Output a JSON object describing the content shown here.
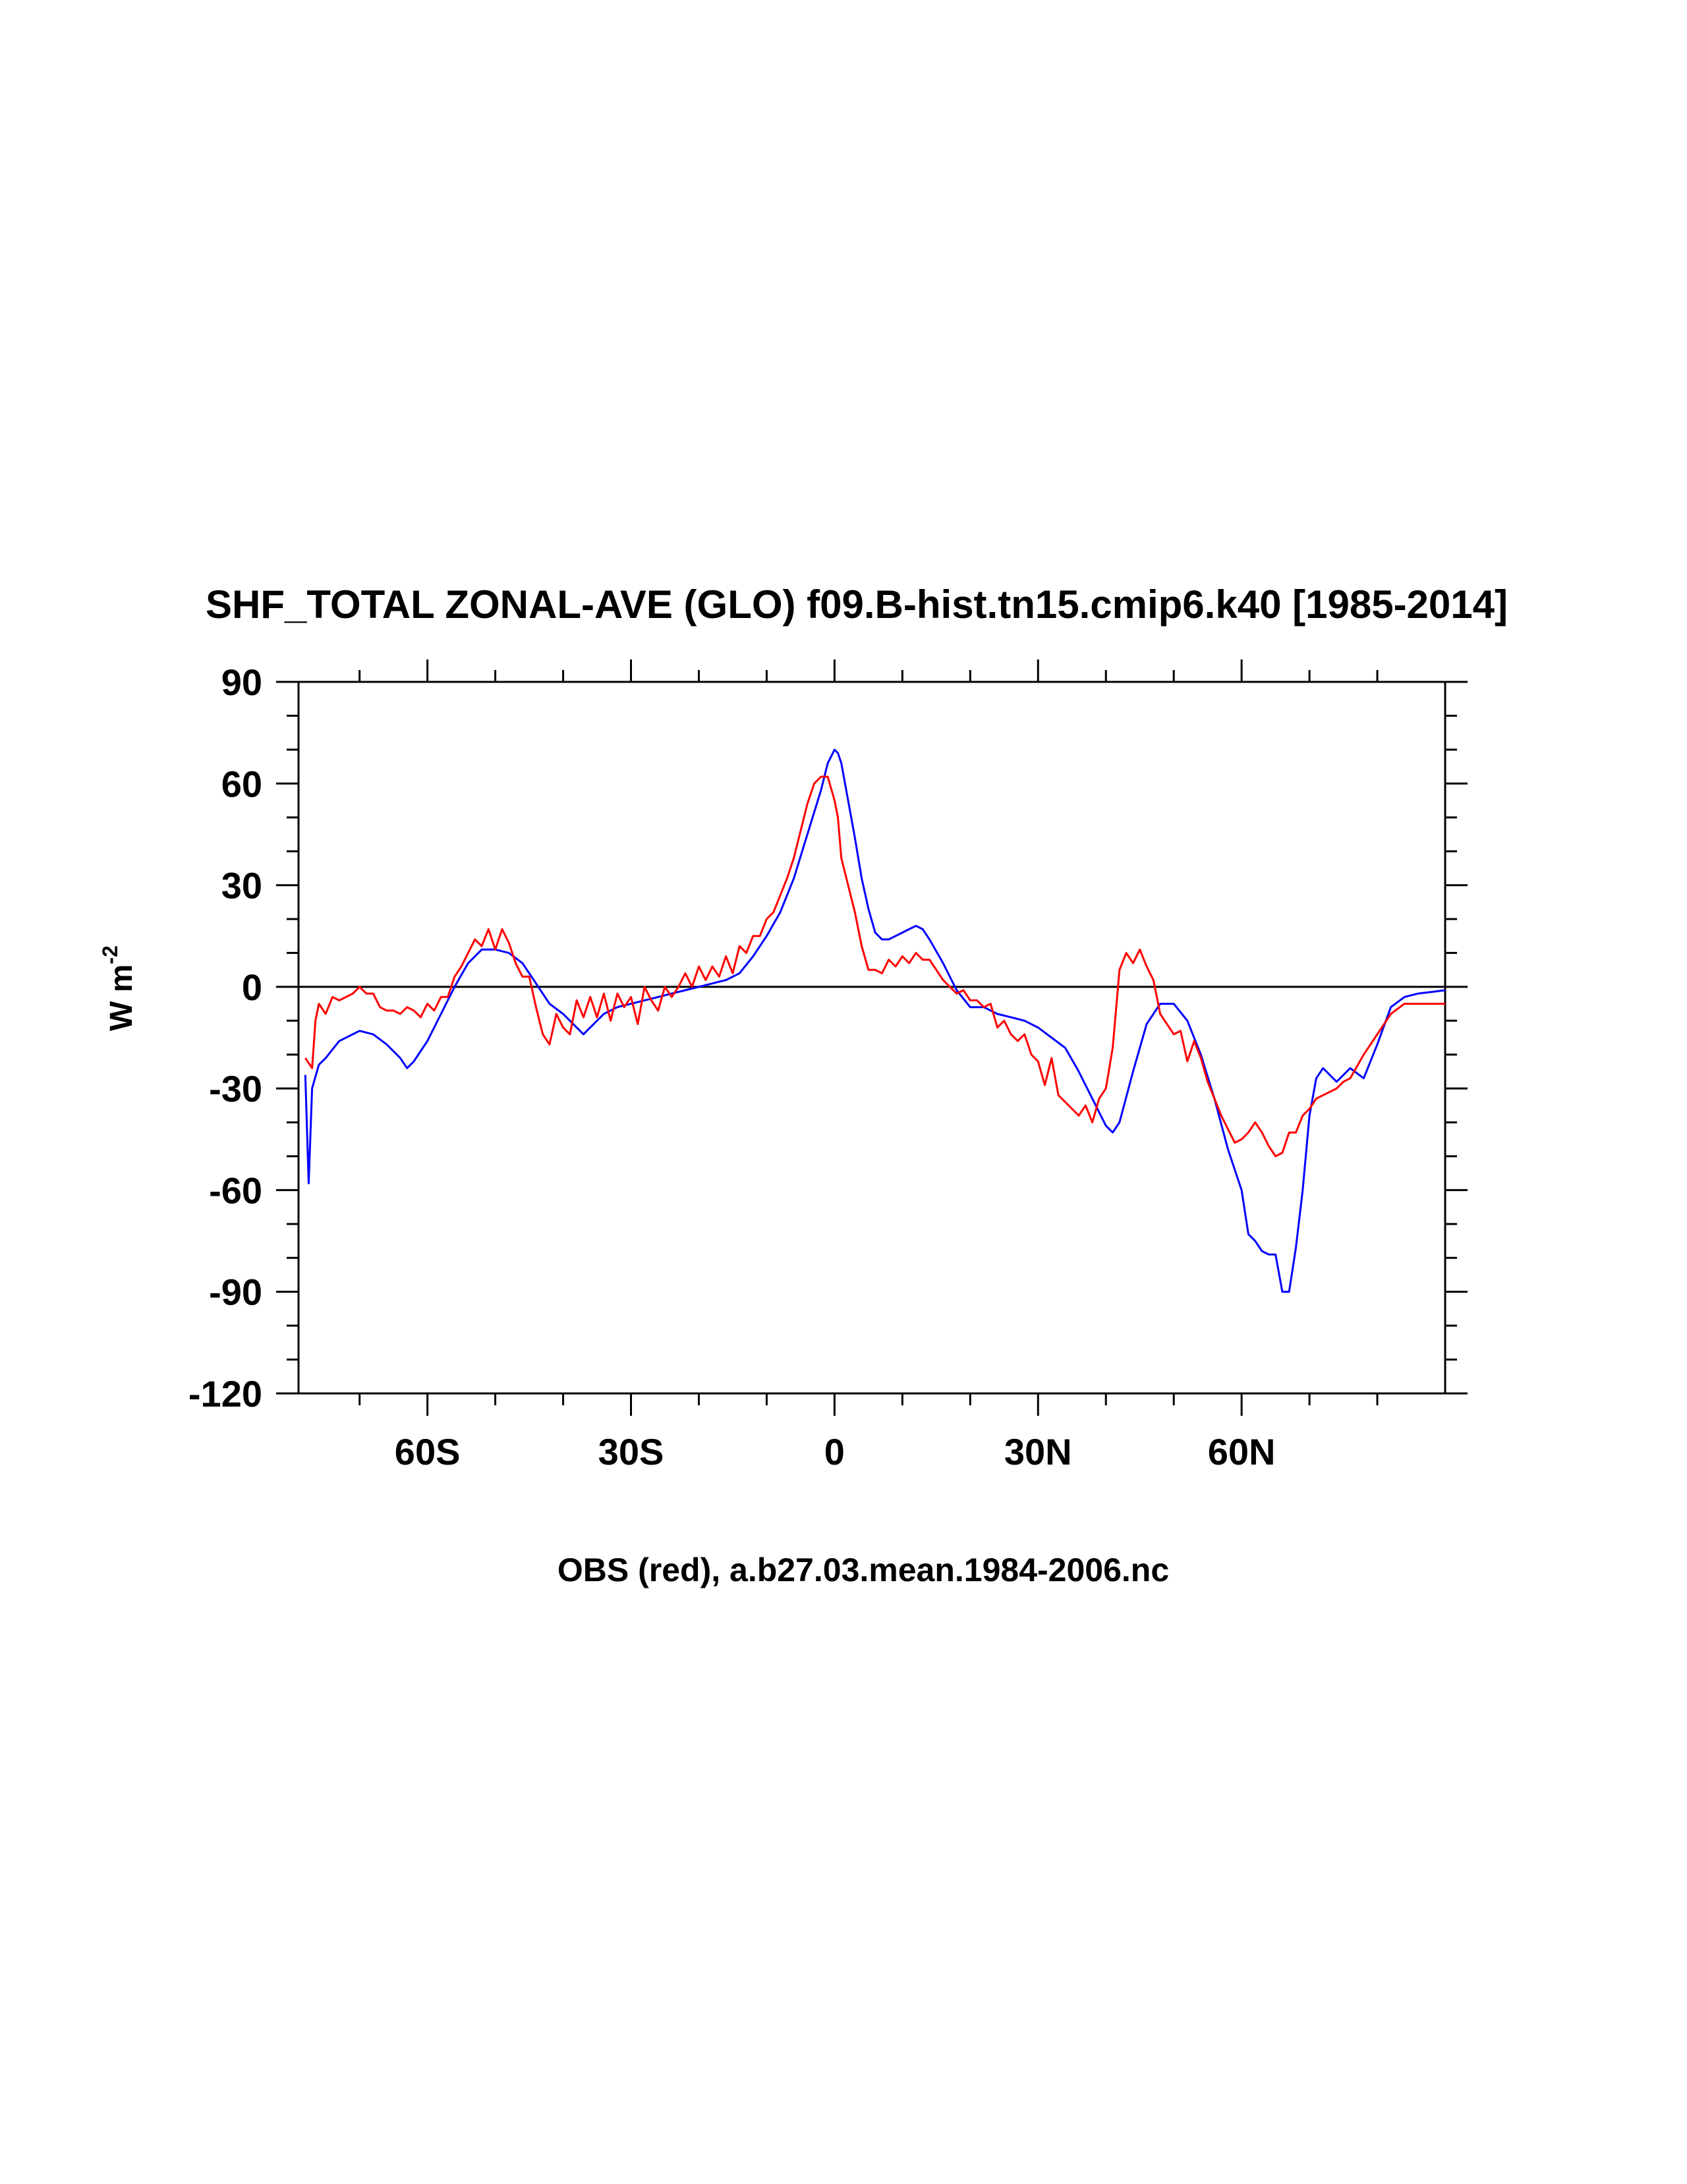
{
  "chart_data": {
    "type": "line",
    "title": "SHF_TOTAL ZONAL-AVE (GLO) f09.B-hist.tn15.cmip6.k40 [1985-2014]",
    "xlabel": "OBS (red), a.b27.03.mean.1984-2006.nc",
    "ylabel_main": "W m",
    "ylabel_sup": "-2",
    "xlim": [
      -79,
      90
    ],
    "ylim": [
      -120,
      90
    ],
    "x_ticks": [
      {
        "value": -60,
        "label": "60S"
      },
      {
        "value": -30,
        "label": "30S"
      },
      {
        "value": 0,
        "label": "0"
      },
      {
        "value": 30,
        "label": "30N"
      },
      {
        "value": 60,
        "label": "60N"
      }
    ],
    "y_ticks": [
      90,
      60,
      30,
      0,
      -30,
      -60,
      -90,
      -120
    ],
    "zero_line": true,
    "series": [
      {
        "color": "#0000ff",
        "x": [
          -78,
          -77.5,
          -77,
          -76,
          -75,
          -73,
          -70,
          -68,
          -66,
          -64,
          -63,
          -62,
          -60,
          -58,
          -56,
          -54,
          -52,
          -50,
          -48,
          -46,
          -44,
          -42,
          -40,
          -38,
          -37,
          -36,
          -34,
          -32,
          -30,
          -28,
          -26,
          -24,
          -22,
          -20,
          -18,
          -16,
          -14,
          -12,
          -10,
          -8,
          -6,
          -4,
          -2,
          -1,
          0,
          0.5,
          1,
          2,
          3,
          4,
          5,
          6,
          7,
          8,
          9,
          10,
          11,
          12,
          13,
          14,
          16,
          18,
          20,
          22,
          24,
          26,
          28,
          30,
          32,
          34,
          36,
          38,
          40,
          41,
          42,
          44,
          46,
          48,
          50,
          52,
          54,
          56,
          58,
          60,
          61,
          62,
          63,
          64,
          65,
          66,
          67,
          68,
          69,
          70,
          71,
          72,
          74,
          76,
          78,
          80,
          82,
          84,
          86,
          88,
          90
        ],
        "y": [
          -26,
          -58,
          -30,
          -23,
          -21,
          -16,
          -13,
          -14,
          -17,
          -21,
          -24,
          -22,
          -16,
          -8,
          0,
          7,
          11,
          11,
          10,
          7,
          1,
          -5,
          -8,
          -12,
          -14,
          -12,
          -8,
          -6,
          -5,
          -4,
          -3,
          -2,
          -1,
          0,
          1,
          2,
          4,
          9,
          15,
          22,
          32,
          45,
          58,
          66,
          70,
          69,
          66,
          55,
          44,
          32,
          23,
          16,
          14,
          14,
          15,
          16,
          17,
          18,
          17,
          14,
          7,
          -1,
          -6,
          -6,
          -8,
          -9,
          -10,
          -12,
          -15,
          -18,
          -25,
          -33,
          -41,
          -43,
          -40,
          -25,
          -11,
          -5,
          -5,
          -10,
          -20,
          -33,
          -48,
          -60,
          -73,
          -75,
          -78,
          -79,
          -79,
          -90,
          -90,
          -77,
          -60,
          -38,
          -27,
          -24,
          -28,
          -24,
          -27,
          -17,
          -6,
          -3,
          -2,
          -1.5,
          -1
        ]
      },
      {
        "color": "#ff0000",
        "x": [
          -78,
          -77,
          -76.5,
          -76,
          -75,
          -74,
          -73,
          -72,
          -71,
          -70,
          -69,
          -68,
          -67,
          -66,
          -65,
          -64,
          -63,
          -62,
          -61,
          -60,
          -59,
          -58,
          -57,
          -56,
          -55,
          -54,
          -53,
          -52,
          -51,
          -50,
          -49,
          -48,
          -47,
          -46,
          -45,
          -44,
          -43,
          -42,
          -41,
          -40,
          -39,
          -38,
          -37,
          -36,
          -35,
          -34,
          -33,
          -32,
          -31,
          -30,
          -29,
          -28,
          -27,
          -26,
          -25,
          -24,
          -23,
          -22,
          -21,
          -20,
          -19,
          -18,
          -17,
          -16,
          -15,
          -14,
          -13,
          -12,
          -11,
          -10,
          -9,
          -8,
          -7,
          -6,
          -5,
          -4,
          -3,
          -2,
          -1,
          0,
          0.5,
          1,
          2,
          3,
          4,
          5,
          6,
          7,
          8,
          9,
          10,
          11,
          12,
          13,
          14,
          15,
          16,
          17,
          18,
          19,
          20,
          21,
          22,
          23,
          24,
          25,
          26,
          27,
          28,
          29,
          30,
          31,
          32,
          33,
          34,
          35,
          36,
          37,
          38,
          39,
          40,
          41,
          42,
          43,
          44,
          45,
          46,
          47,
          48,
          49,
          50,
          51,
          52,
          53,
          54,
          55,
          56,
          57,
          58,
          59,
          60,
          61,
          62,
          63,
          64,
          65,
          66,
          67,
          68,
          69,
          70,
          71,
          72,
          73,
          74,
          75,
          76,
          78,
          80,
          82,
          84,
          86,
          88,
          90
        ],
        "y": [
          -21,
          -24,
          -10,
          -5,
          -8,
          -3,
          -4,
          -3,
          -2,
          0,
          -2,
          -2,
          -6,
          -7,
          -7,
          -8,
          -6,
          -7,
          -9,
          -5,
          -7,
          -3,
          -3,
          3,
          6,
          10,
          14,
          12,
          17,
          11,
          17,
          13,
          7,
          3,
          3,
          -6,
          -14,
          -17,
          -8,
          -12,
          -14,
          -4,
          -9,
          -3,
          -9,
          -2,
          -10,
          -2,
          -6,
          -3,
          -11,
          0,
          -4,
          -7,
          0,
          -3,
          0,
          4,
          0,
          6,
          2,
          6,
          3,
          9,
          4,
          12,
          10,
          15,
          15,
          20,
          22,
          27,
          32,
          38,
          46,
          54,
          60,
          62,
          62,
          55,
          50,
          38,
          30,
          22,
          12,
          5,
          5,
          4,
          8,
          6,
          9,
          7,
          10,
          8,
          8,
          5,
          2,
          0,
          -2,
          -1,
          -4,
          -4,
          -6,
          -5,
          -12,
          -10,
          -14,
          -16,
          -14,
          -20,
          -22,
          -29,
          -21,
          -32,
          -34,
          -36,
          -38,
          -35,
          -40,
          -33,
          -30,
          -18,
          5,
          10,
          7,
          11,
          6,
          2,
          -8,
          -11,
          -14,
          -13,
          -22,
          -16,
          -21,
          -28,
          -33,
          -38,
          -42,
          -46,
          -45,
          -43,
          -40,
          -43,
          -47,
          -50,
          -49,
          -43,
          -43,
          -38,
          -36,
          -33,
          -32,
          -31,
          -30,
          -28,
          -27,
          -20,
          -14,
          -8,
          -5,
          -5,
          -5,
          -5
        ]
      }
    ]
  }
}
